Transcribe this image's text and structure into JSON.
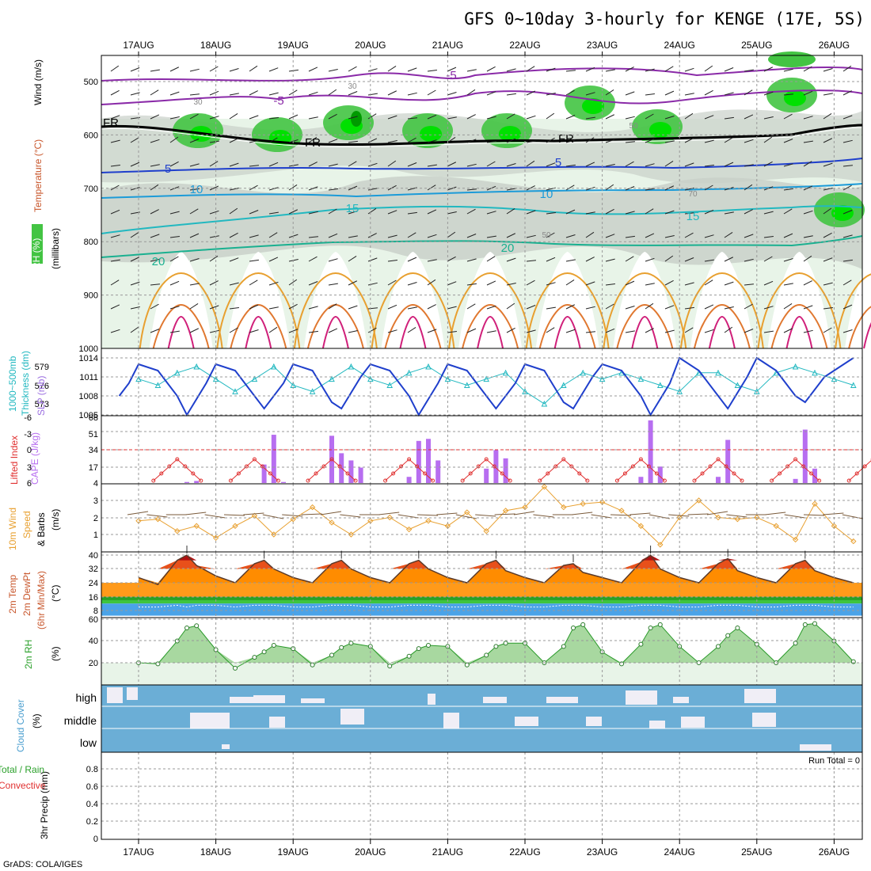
{
  "title": "GFS 0~10day 3-hourly for KENGE (17E, 5S)",
  "credit": "GrADS: COLA/IGES",
  "dates": [
    "17AUG",
    "18AUG",
    "19AUG",
    "20AUG",
    "21AUG",
    "22AUG",
    "23AUG",
    "24AUG",
    "25AUG",
    "26AUG"
  ],
  "colors": {
    "rh_green": "#43c443",
    "bright_green": "#00e000",
    "dark_green": "#009a00",
    "pale_green": "#e8f4e8",
    "gray_fill": "#c9d0c9",
    "slp_line": "#1f3fcc",
    "thickness_line": "#22b8c0",
    "lifted_line": "#e03030",
    "cape_bar": "#b76ef0",
    "wind_line": "#e8a030",
    "cloud_blue": "#6baed6",
    "cloud_white": "#f0eef6"
  },
  "panels": {
    "upper": {
      "ylabels": [
        "Wind (m/s)",
        "Temperature (°C)",
        "RH (%)",
        "(millibars)"
      ],
      "yticks": [
        "500",
        "600",
        "700",
        "800",
        "900",
        "1000"
      ],
      "contour_labels": [
        "-5",
        "-5",
        "FR",
        "FR",
        "FR",
        "5",
        "5",
        "10",
        "10",
        "15",
        "15",
        "20",
        "20",
        "30",
        "30",
        "50",
        "50",
        "70"
      ]
    },
    "slp": {
      "ylabels": [
        "1000~500mb",
        "Thickness (dm)",
        "SLP (mb)"
      ],
      "thick_ticks": [
        "579",
        "576",
        "573"
      ],
      "slp_ticks": [
        "1014",
        "1011",
        "1008",
        "1005"
      ]
    },
    "cape": {
      "ylabels": [
        "Lifted Index",
        "CAPE (J/kg)"
      ],
      "li_ticks": [
        "-6",
        "-3",
        "0",
        "3",
        "6"
      ],
      "cape_ticks": [
        "68",
        "51",
        "34",
        "17",
        "4"
      ]
    },
    "wind10": {
      "ylabels": [
        "10m Wind",
        "Speed",
        "& Barbs",
        "(m/s)"
      ],
      "yticks": [
        "3",
        "2",
        "1"
      ]
    },
    "temp2m": {
      "ylabels": [
        "2m Temp",
        "2m DewPt",
        "(6hr Min/Max)",
        "(°C)"
      ],
      "yticks": [
        "40",
        "32",
        "24",
        "16",
        "8"
      ]
    },
    "rh2m": {
      "ylabels": [
        "2m RH",
        "(%)"
      ],
      "yticks": [
        "60",
        "40",
        "20"
      ]
    },
    "cloud": {
      "ylabels": [
        "Cloud Cover",
        "(%)"
      ],
      "levels": [
        "high",
        "middle",
        "low"
      ]
    },
    "precip": {
      "ylabels": [
        "3hr Precip (mm)",
        "Total / Rain",
        "Convective"
      ],
      "yticks": [
        "0.8",
        "0.6",
        "0.4",
        "0.2",
        "0"
      ],
      "run_total": "Run Total = 0"
    }
  },
  "chart_data": [
    {
      "type": "line",
      "name": "SLP (mb)",
      "x": [
        "16AUG18",
        "16AUG21",
        "17AUG00",
        "17AUG06",
        "17AUG12",
        "17AUG15",
        "17AUG21",
        "18AUG00",
        "18AUG06",
        "18AUG12",
        "18AUG15",
        "18AUG21",
        "19AUG00",
        "19AUG06",
        "19AUG12",
        "19AUG15",
        "19AUG21",
        "20AUG00",
        "20AUG06",
        "20AUG12",
        "20AUG15",
        "20AUG21",
        "21AUG00",
        "21AUG06",
        "21AUG12",
        "21AUG15",
        "21AUG21",
        "22AUG00",
        "22AUG06",
        "22AUG12",
        "22AUG15",
        "22AUG21",
        "23AUG00",
        "23AUG06",
        "23AUG12",
        "23AUG15",
        "23AUG21",
        "24AUG00",
        "24AUG06",
        "24AUG12",
        "24AUG15",
        "24AUG21",
        "25AUG00",
        "25AUG06",
        "25AUG12",
        "25AUG15",
        "25AUG21",
        "26AUG06"
      ],
      "values": [
        1008,
        1010,
        1013,
        1012,
        1008,
        1005,
        1010,
        1013,
        1012,
        1008,
        1006,
        1010,
        1013,
        1012,
        1007,
        1006,
        1011,
        1013,
        1012,
        1008,
        1005,
        1010,
        1013,
        1012,
        1008,
        1006,
        1010,
        1013,
        1012,
        1007,
        1006,
        1011,
        1013,
        1012,
        1008,
        1005,
        1010,
        1014,
        1012,
        1008,
        1006,
        1011,
        1014,
        1012,
        1008,
        1007,
        1011,
        1014
      ],
      "yticks": [
        1014,
        1011,
        1008,
        1005
      ]
    },
    {
      "type": "line",
      "name": "1000~500mb Thickness (dm)",
      "x": [
        "17AUG00",
        "17AUG06",
        "17AUG12",
        "17AUG18",
        "18AUG00",
        "18AUG06",
        "18AUG12",
        "18AUG18",
        "19AUG00",
        "19AUG06",
        "19AUG12",
        "19AUG18",
        "20AUG00",
        "20AUG06",
        "20AUG12",
        "20AUG18",
        "21AUG00",
        "21AUG06",
        "21AUG12",
        "21AUG18",
        "22AUG00",
        "22AUG06",
        "22AUG12",
        "22AUG18",
        "23AUG00",
        "23AUG06",
        "23AUG12",
        "23AUG18",
        "24AUG00",
        "24AUG06",
        "24AUG12",
        "24AUG18",
        "25AUG00",
        "25AUG06",
        "25AUG12",
        "25AUG18",
        "26AUG00",
        "26AUG06"
      ],
      "values": [
        577,
        576,
        578,
        579,
        577,
        575,
        577,
        579,
        576,
        575,
        577,
        579,
        577,
        576,
        578,
        579,
        577,
        576,
        577,
        578,
        575,
        573,
        576,
        578,
        577,
        578,
        577,
        576,
        575,
        578,
        578,
        576,
        575,
        578,
        579,
        578,
        577,
        576
      ],
      "yticks": [
        579,
        576,
        573
      ]
    },
    {
      "type": "bar",
      "name": "CAPE (J/kg)",
      "categories": [
        "17AUG15",
        "17AUG18",
        "18AUG15",
        "18AUG18",
        "18AUG21",
        "19AUG12",
        "19AUG15",
        "19AUG18",
        "19AUG21",
        "20AUG12",
        "20AUG15",
        "20AUG18",
        "20AUG21",
        "21AUG12",
        "21AUG15",
        "21AUG18",
        "23AUG12",
        "23AUG15",
        "23AUG18",
        "24AUG12",
        "24AUG15",
        "25AUG12",
        "25AUG15",
        "25AUG18"
      ],
      "values": [
        5,
        6,
        22,
        51,
        5,
        50,
        33,
        26,
        19,
        10,
        45,
        47,
        26,
        18,
        36,
        28,
        10,
        65,
        20,
        10,
        46,
        8,
        56,
        18
      ],
      "ylim": [
        4,
        68
      ],
      "yticks": [
        68,
        51,
        34,
        17,
        4
      ]
    },
    {
      "type": "line",
      "name": "10m Wind Speed (m/s)",
      "x": [
        "17AUG00",
        "17AUG06",
        "17AUG12",
        "17AUG18",
        "18AUG00",
        "18AUG06",
        "18AUG12",
        "18AUG18",
        "19AUG00",
        "19AUG06",
        "19AUG12",
        "19AUG18",
        "20AUG00",
        "20AUG06",
        "20AUG12",
        "20AUG18",
        "21AUG00",
        "21AUG06",
        "21AUG12",
        "21AUG18",
        "22AUG00",
        "22AUG06",
        "22AUG12",
        "22AUG18",
        "23AUG00",
        "23AUG06",
        "23AUG12",
        "23AUG18",
        "24AUG00",
        "24AUG06",
        "24AUG12",
        "24AUG18",
        "25AUG00",
        "25AUG06",
        "25AUG12",
        "25AUG18",
        "26AUG00",
        "26AUG06"
      ],
      "values": [
        1.8,
        1.9,
        1.2,
        1.5,
        0.8,
        1.5,
        2.1,
        1.0,
        1.9,
        2.6,
        1.7,
        1.0,
        1.8,
        2.0,
        1.3,
        1.8,
        1.5,
        2.3,
        1.2,
        2.4,
        2.6,
        3.8,
        2.6,
        2.8,
        2.9,
        2.4,
        1.5,
        0.4,
        2.0,
        3.0,
        2.0,
        1.9,
        2.0,
        1.5,
        0.7,
        2.8,
        1.5,
        0.6
      ],
      "yticks": [
        3,
        2,
        1
      ]
    },
    {
      "type": "area",
      "name": "2m Temp (°C)",
      "x": [
        "17AUG00",
        "17AUG06",
        "17AUG12",
        "17AUG15",
        "17AUG18",
        "18AUG00",
        "18AUG06",
        "18AUG12",
        "18AUG15",
        "18AUG18",
        "19AUG00",
        "19AUG06",
        "19AUG12",
        "19AUG15",
        "19AUG18",
        "20AUG00",
        "20AUG06",
        "20AUG12",
        "20AUG15",
        "20AUG18",
        "21AUG00",
        "21AUG06",
        "21AUG12",
        "21AUG15",
        "21AUG18",
        "22AUG00",
        "22AUG06",
        "22AUG12",
        "22AUG15",
        "22AUG18",
        "23AUG00",
        "23AUG06",
        "23AUG12",
        "23AUG15",
        "23AUG18",
        "24AUG00",
        "24AUG06",
        "24AUG12",
        "24AUG15",
        "24AUG18",
        "25AUG00",
        "25AUG06",
        "25AUG12",
        "25AUG15",
        "25AUG18",
        "26AUG00",
        "26AUG06"
      ],
      "values": [
        27,
        23,
        37,
        40,
        34,
        28,
        24,
        35,
        37,
        32,
        27,
        24,
        35,
        37,
        32,
        27,
        24,
        35,
        37,
        32,
        27,
        24,
        35,
        37,
        31,
        27,
        24,
        34,
        35,
        30,
        27,
        24,
        36,
        40,
        32,
        27,
        24,
        35,
        38,
        31,
        27,
        24,
        35,
        37,
        31,
        27,
        24
      ],
      "dewpoint": [
        10,
        10,
        11,
        10,
        11,
        11,
        10,
        11,
        11,
        11,
        10,
        10,
        11,
        11,
        11,
        10,
        10,
        11,
        11,
        11,
        10,
        10,
        11,
        11,
        11,
        10,
        10,
        11,
        11,
        11,
        10,
        10,
        11,
        11,
        11,
        10,
        10,
        11,
        11,
        11,
        10,
        10,
        11,
        11,
        11,
        10,
        10
      ],
      "yticks": [
        40,
        32,
        24,
        16,
        8
      ]
    },
    {
      "type": "area",
      "name": "2m RH (%)",
      "x": [
        "17AUG00",
        "17AUG06",
        "17AUG12",
        "17AUG15",
        "17AUG18",
        "18AUG00",
        "18AUG06",
        "18AUG12",
        "18AUG15",
        "18AUG18",
        "19AUG00",
        "19AUG06",
        "19AUG12",
        "19AUG15",
        "19AUG18",
        "20AUG00",
        "20AUG06",
        "20AUG12",
        "20AUG15",
        "20AUG18",
        "21AUG00",
        "21AUG06",
        "21AUG12",
        "21AUG15",
        "21AUG18",
        "22AUG00",
        "22AUG06",
        "22AUG12",
        "22AUG15",
        "22AUG18",
        "23AUG00",
        "23AUG06",
        "23AUG12",
        "23AUG15",
        "23AUG18",
        "24AUG00",
        "24AUG06",
        "24AUG12",
        "24AUG15",
        "24AUG18",
        "25AUG00",
        "25AUG06",
        "25AUG12",
        "25AUG15",
        "25AUG18",
        "26AUG00",
        "26AUG06"
      ],
      "values": [
        20,
        19,
        40,
        52,
        54,
        32,
        15,
        25,
        30,
        36,
        33,
        18,
        27,
        34,
        38,
        35,
        17,
        26,
        33,
        36,
        35,
        18,
        27,
        35,
        38,
        38,
        20,
        35,
        52,
        55,
        30,
        19,
        37,
        52,
        55,
        35,
        20,
        35,
        45,
        52,
        37,
        20,
        38,
        55,
        56,
        40,
        21
      ],
      "yticks": [
        60,
        40,
        20
      ]
    },
    {
      "type": "line",
      "name": "3hr Precip (mm)",
      "x": [
        "17AUG00",
        "26AUG06"
      ],
      "values": [
        0,
        0
      ],
      "ylim": [
        0,
        0.9
      ],
      "yticks": [
        0.8,
        0.6,
        0.4,
        0.2,
        0
      ]
    }
  ]
}
